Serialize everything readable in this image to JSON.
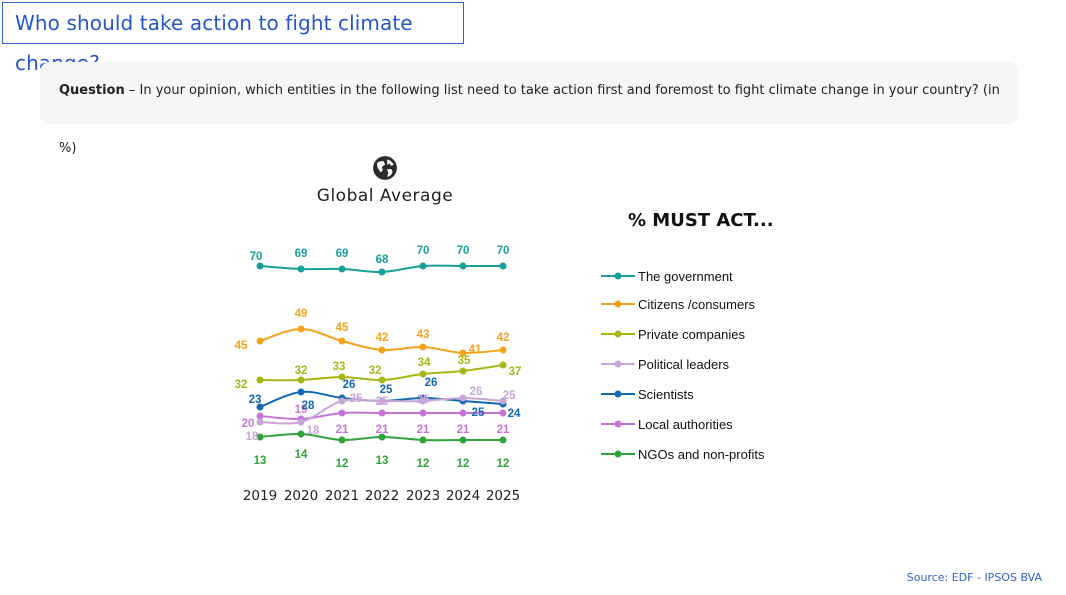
{
  "header": {
    "title": "Who should take action to fight climate change?"
  },
  "question": {
    "label": "Question",
    "text": " – In your opinion, which entities in the following list need to take action first and foremost to fight climate change in your country? (in %)"
  },
  "chart_header": {
    "icon": "globe-icon",
    "title": "Global Average"
  },
  "legend": {
    "title": "% MUST ACT..."
  },
  "footer": {
    "source": "Source: EDF - IPSOS BVA"
  },
  "chart_data": {
    "type": "line",
    "title": "Global Average",
    "subtitle": "% MUST ACT...",
    "xlabel": "",
    "ylabel": "%",
    "categories": [
      "2019",
      "2020",
      "2021",
      "2022",
      "2023",
      "2024",
      "2025"
    ],
    "grid": false,
    "legend_position": "right",
    "series": [
      {
        "name": "The government",
        "color": "#17a09b",
        "values": [
          70,
          69,
          69,
          68,
          70,
          70,
          70
        ]
      },
      {
        "name": "Citizens /consumers",
        "color": "#f5a21b",
        "values": [
          45,
          49,
          45,
          42,
          43,
          41,
          42
        ]
      },
      {
        "name": "Private companies",
        "color": "#a8b614",
        "values": [
          32,
          32,
          33,
          32,
          34,
          35,
          37
        ]
      },
      {
        "name": "Political leaders",
        "color": "#c9a5d8",
        "values": [
          18,
          18,
          25,
          25,
          25,
          26,
          25
        ]
      },
      {
        "name": "Scientists",
        "color": "#1268b3",
        "values": [
          23,
          28,
          26,
          25,
          26,
          25,
          24
        ]
      },
      {
        "name": "Local authorities",
        "color": "#c574d6",
        "values": [
          20,
          19,
          21,
          21,
          21,
          21,
          21
        ]
      },
      {
        "name": "NGOs and non-profits",
        "color": "#2ea43a",
        "values": [
          13,
          14,
          12,
          13,
          12,
          12,
          12
        ]
      }
    ]
  }
}
